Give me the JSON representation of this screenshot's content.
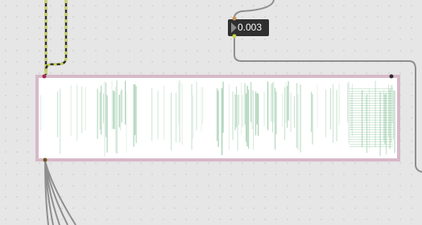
{
  "number_box": {
    "value": "0.003"
  }
}
